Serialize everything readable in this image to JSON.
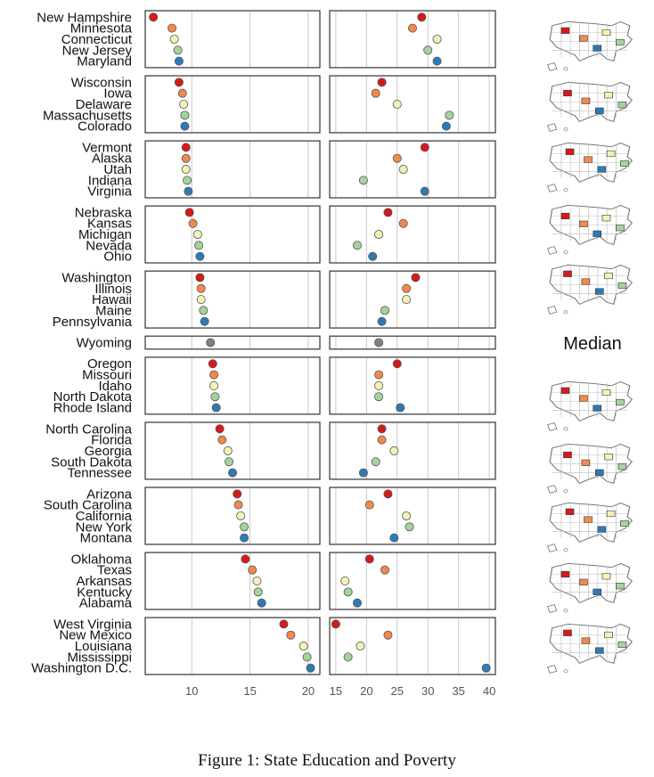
{
  "caption": "Figure 1: State Education and Poverty",
  "median_label": "Median",
  "colors": {
    "group_palette_5": [
      "#d7191c",
      "#f08a4b",
      "#f2f2b6",
      "#a4d49c",
      "#2c7bb6"
    ],
    "single": "#808080",
    "outlier_blue": "#2c7bb6"
  },
  "chart_data": [
    {
      "type": "scatter",
      "panel": "left",
      "xlim": [
        6,
        21
      ],
      "xticks": [
        10,
        15,
        20
      ],
      "grid": true,
      "groups": [
        {
          "states": [
            "New Hampshire",
            "Minnesota",
            "Connecticut",
            "New Jersey",
            "Maryland"
          ],
          "values": [
            6.7,
            8.3,
            8.5,
            8.8,
            8.9
          ]
        },
        {
          "states": [
            "Wisconsin",
            "Iowa",
            "Delaware",
            "Massachusetts",
            "Colorado"
          ],
          "values": [
            8.9,
            9.2,
            9.3,
            9.4,
            9.4
          ]
        },
        {
          "states": [
            "Vermont",
            "Alaska",
            "Utah",
            "Indiana",
            "Virginia"
          ],
          "values": [
            9.5,
            9.5,
            9.5,
            9.6,
            9.7
          ]
        },
        {
          "states": [
            "Nebraska",
            "Kansas",
            "Michigan",
            "Nevada",
            "Ohio"
          ],
          "values": [
            9.8,
            10.1,
            10.5,
            10.6,
            10.7
          ]
        },
        {
          "states": [
            "Washington",
            "Illinois",
            "Hawaii",
            "Maine",
            "Pennsylvania"
          ],
          "values": [
            10.7,
            10.8,
            10.8,
            11.0,
            11.1
          ]
        },
        {
          "states": [
            "Wyoming"
          ],
          "values": [
            11.6
          ]
        },
        {
          "states": [
            "Oregon",
            "Missouri",
            "Idaho",
            "North Dakota",
            "Rhode Island"
          ],
          "values": [
            11.8,
            11.9,
            11.9,
            12.0,
            12.1
          ]
        },
        {
          "states": [
            "North Carolina",
            "Florida",
            "Georgia",
            "South Dakota",
            "Tennessee"
          ],
          "values": [
            12.4,
            12.6,
            13.1,
            13.2,
            13.5
          ]
        },
        {
          "states": [
            "Arizona",
            "South Carolina",
            "California",
            "New York",
            "Montana"
          ],
          "values": [
            13.9,
            14.0,
            14.2,
            14.5,
            14.5
          ]
        },
        {
          "states": [
            "Oklahoma",
            "Texas",
            "Arkansas",
            "Kentucky",
            "Alabama"
          ],
          "values": [
            14.6,
            15.2,
            15.6,
            15.7,
            16.0
          ]
        },
        {
          "states": [
            "West Virginia",
            "New Mexico",
            "Louisiana",
            "Mississippi",
            "Washington D.C."
          ],
          "values": [
            17.9,
            18.5,
            19.6,
            19.9,
            20.2
          ]
        }
      ]
    },
    {
      "type": "scatter",
      "panel": "right",
      "xlim": [
        14,
        41
      ],
      "xticks": [
        15,
        20,
        25,
        30,
        35,
        40
      ],
      "grid": true,
      "groups": [
        {
          "states": [
            "New Hampshire",
            "Minnesota",
            "Connecticut",
            "New Jersey",
            "Maryland"
          ],
          "values": [
            29.0,
            27.5,
            31.5,
            30.0,
            31.5
          ]
        },
        {
          "states": [
            "Wisconsin",
            "Iowa",
            "Delaware",
            "Massachusetts",
            "Colorado"
          ],
          "values": [
            22.5,
            21.5,
            25.0,
            33.5,
            33.0
          ]
        },
        {
          "states": [
            "Vermont",
            "Alaska",
            "Utah",
            "Indiana",
            "Virginia"
          ],
          "values": [
            29.5,
            25.0,
            26.0,
            19.5,
            29.5
          ]
        },
        {
          "states": [
            "Nebraska",
            "Kansas",
            "Michigan",
            "Nevada",
            "Ohio"
          ],
          "values": [
            23.5,
            26.0,
            22.0,
            18.5,
            21.0
          ]
        },
        {
          "states": [
            "Washington",
            "Illinois",
            "Hawaii",
            "Maine",
            "Pennsylvania"
          ],
          "values": [
            28.0,
            26.5,
            26.5,
            23.0,
            22.5
          ]
        },
        {
          "states": [
            "Wyoming"
          ],
          "values": [
            22.0
          ]
        },
        {
          "states": [
            "Oregon",
            "Missouri",
            "Idaho",
            "North Dakota",
            "Rhode Island"
          ],
          "values": [
            25.0,
            22.0,
            22.0,
            22.0,
            25.5
          ]
        },
        {
          "states": [
            "North Carolina",
            "Florida",
            "Georgia",
            "South Dakota",
            "Tennessee"
          ],
          "values": [
            22.5,
            22.5,
            24.5,
            21.5,
            19.5
          ]
        },
        {
          "states": [
            "Arizona",
            "South Carolina",
            "California",
            "New York",
            "Montana"
          ],
          "values": [
            23.5,
            20.5,
            26.5,
            27.0,
            24.5
          ]
        },
        {
          "states": [
            "Oklahoma",
            "Texas",
            "Arkansas",
            "Kentucky",
            "Alabama"
          ],
          "values": [
            20.5,
            23.0,
            16.5,
            17.0,
            18.5
          ]
        },
        {
          "states": [
            "West Virginia",
            "New Mexico",
            "Louisiana",
            "Mississippi",
            "Washington D.C."
          ],
          "values": [
            15.0,
            23.5,
            19.0,
            17.0,
            39.5
          ]
        }
      ]
    }
  ]
}
